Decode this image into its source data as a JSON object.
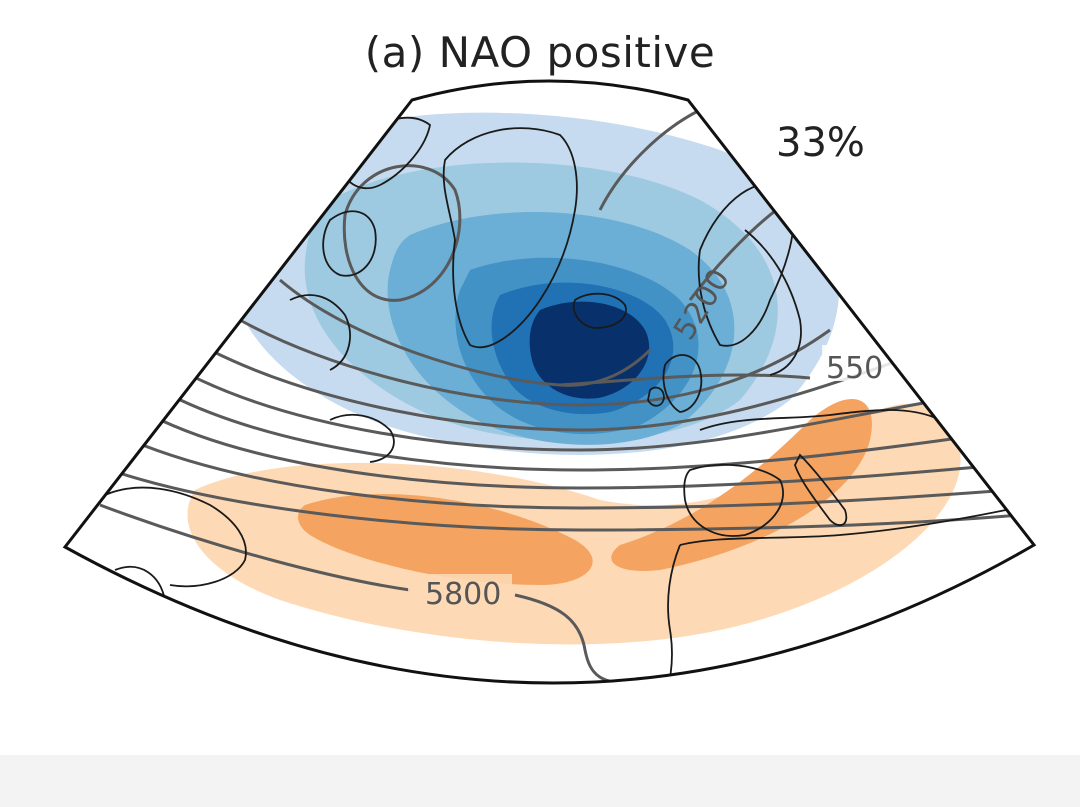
{
  "figure": {
    "title": "(a) NAO positive",
    "frequency_label": "33%"
  },
  "map": {
    "projection": "conic sector (North Atlantic / Europe)",
    "shading": {
      "negative_anomaly_color": "#08306b",
      "negative_light_color": "#c6dbef",
      "positive_anomaly_color": "#f4a460",
      "positive_light_color": "#fdd9b5"
    },
    "contour_color": "#555555",
    "contour_labels": [
      "5200",
      "550",
      "5800"
    ]
  }
}
